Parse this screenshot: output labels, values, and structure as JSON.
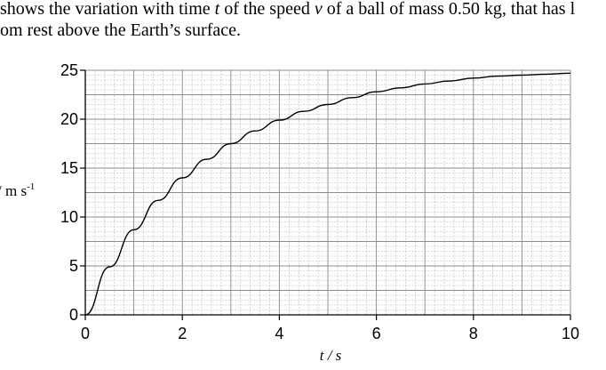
{
  "intro": {
    "line1_a": "shows the variation with time ",
    "line1_t": "t",
    "line1_b": " of the speed ",
    "line1_v": "v",
    "line1_c": " of a ball of mass 0.50 kg, that has l",
    "line2": "om rest above the Earth’s surface."
  },
  "chart_data": {
    "type": "line",
    "xlabel": "t / s",
    "ylabel": "/ m s⁻¹",
    "xlim": [
      0,
      10
    ],
    "ylim": [
      0,
      25
    ],
    "x_ticks": [
      "0",
      "2",
      "4",
      "6",
      "8",
      "10"
    ],
    "y_ticks": [
      "0",
      "5",
      "10",
      "15",
      "20",
      "25"
    ],
    "grid": true,
    "series": [
      {
        "x": [
          0,
          0.5,
          1,
          1.5,
          2,
          2.5,
          3,
          3.5,
          4,
          4.5,
          5,
          5.5,
          6,
          6.5,
          7,
          7.5,
          8,
          8.5,
          9,
          9.5,
          10
        ],
        "values": [
          0,
          4.9,
          8.7,
          11.7,
          14.0,
          15.9,
          17.5,
          18.8,
          19.9,
          20.8,
          21.5,
          22.2,
          22.8,
          23.2,
          23.6,
          23.9,
          24.2,
          24.4,
          24.5,
          24.6,
          24.7
        ],
        "color": "#000000"
      }
    ]
  }
}
